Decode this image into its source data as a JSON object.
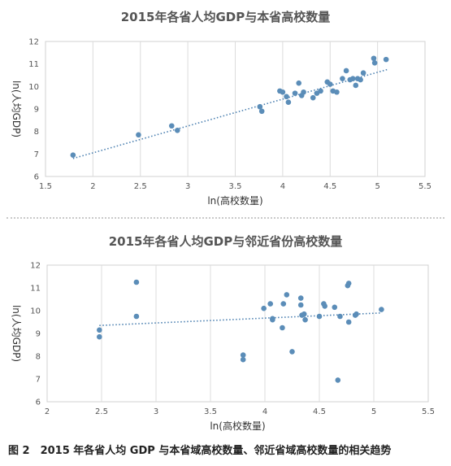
{
  "caption": "图 2　2015 年各省人均 GDP 与本省域高校数量、邻近省域高校数量的相关趋势",
  "chart_data": [
    {
      "type": "scatter",
      "title": "2015年各省人均GDP与本省高校数量",
      "xlabel": "ln(高校数量)",
      "ylabel": "ln(人均GDP)",
      "xlim": [
        1.5,
        5.5
      ],
      "ylim": [
        6,
        12
      ],
      "xticks": [
        "1.5",
        "2",
        "2.5",
        "3",
        "3.5",
        "4",
        "4.5",
        "5",
        "5.5"
      ],
      "yticks": [
        "6",
        "7",
        "8",
        "9",
        "10",
        "11",
        "12"
      ],
      "grid": "vertical",
      "trendline": "linear-dotted",
      "trend_line": [
        [
          1.79,
          6.8
        ],
        [
          5.1,
          10.75
        ]
      ],
      "marker_color": "#5b8db8",
      "trend_color": "#4a7fb0",
      "x": [
        1.79,
        2.48,
        2.83,
        2.89,
        3.76,
        3.78,
        3.97,
        4.0,
        4.04,
        4.06,
        4.13,
        4.17,
        4.2,
        4.22,
        4.32,
        4.36,
        4.4,
        4.47,
        4.5,
        4.53,
        4.57,
        4.63,
        4.67,
        4.71,
        4.74,
        4.77,
        4.79,
        4.82,
        4.85,
        4.96,
        4.97,
        5.09
      ],
      "y": [
        6.95,
        7.85,
        8.25,
        8.05,
        9.1,
        8.9,
        9.8,
        9.75,
        9.55,
        9.3,
        9.7,
        10.15,
        9.6,
        9.75,
        9.5,
        9.7,
        9.8,
        10.2,
        10.1,
        9.8,
        9.75,
        10.35,
        10.7,
        10.3,
        10.35,
        10.05,
        10.35,
        10.3,
        10.6,
        11.25,
        11.05,
        11.2
      ]
    },
    {
      "type": "scatter",
      "title": "2015年各省人均GDP与邻近省份高校数量",
      "xlabel": "ln(高校数量)",
      "ylabel": "ln(人均GDP)",
      "xlim": [
        2,
        5.5
      ],
      "ylim": [
        6,
        12
      ],
      "xticks": [
        "2",
        "2.5",
        "3",
        "3.5",
        "4",
        "4.5",
        "5",
        "5.5"
      ],
      "yticks": [
        "6",
        "7",
        "8",
        "9",
        "10",
        "11",
        "12"
      ],
      "grid": "vertical",
      "trendline": "linear-dotted",
      "trend_line": [
        [
          2.48,
          9.35
        ],
        [
          5.07,
          9.9
        ]
      ],
      "marker_color": "#5b8db8",
      "trend_color": "#4a7fb0",
      "x": [
        2.48,
        2.48,
        2.82,
        2.82,
        3.8,
        3.8,
        3.99,
        4.05,
        4.07,
        4.07,
        4.16,
        4.17,
        4.2,
        4.25,
        4.33,
        4.33,
        4.34,
        4.36,
        4.37,
        4.5,
        4.54,
        4.55,
        4.64,
        4.67,
        4.69,
        4.76,
        4.77,
        4.77,
        4.83,
        4.84,
        5.07
      ],
      "y": [
        9.15,
        8.85,
        11.25,
        9.75,
        8.05,
        7.85,
        10.1,
        10.3,
        9.65,
        9.6,
        9.25,
        10.3,
        10.7,
        8.2,
        10.55,
        10.25,
        9.8,
        9.85,
        9.6,
        9.75,
        10.3,
        10.2,
        10.15,
        6.95,
        9.75,
        11.1,
        11.2,
        9.5,
        9.8,
        9.85,
        10.05
      ]
    }
  ]
}
